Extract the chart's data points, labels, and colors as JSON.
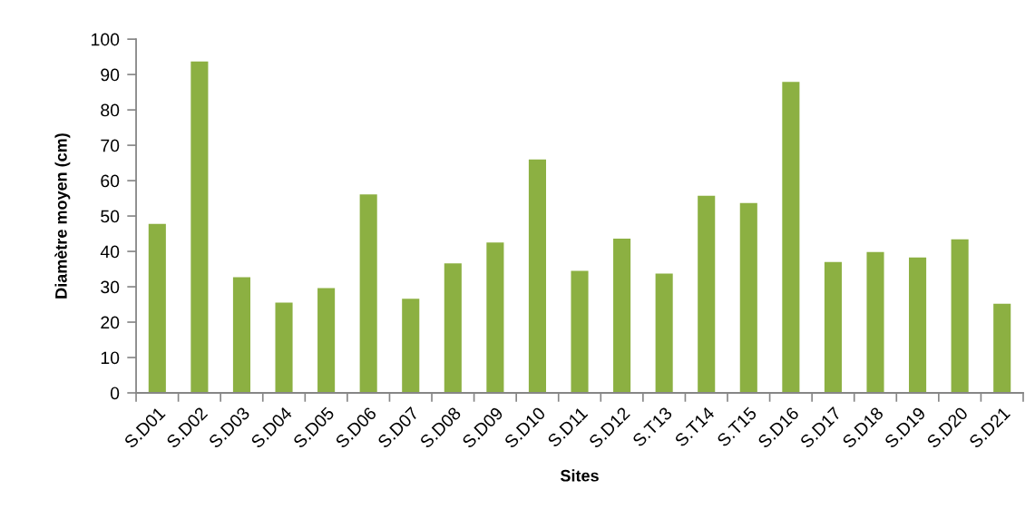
{
  "chart_data": {
    "type": "bar",
    "xlabel": "Sites",
    "ylabel": "Diamètre moyen (cm)",
    "categories": [
      "S.D01",
      "S.D02",
      "S.D03",
      "S.D04",
      "S.D05",
      "S.D06",
      "S.D07",
      "S.D08",
      "S.D09",
      "S.D10",
      "S.D11",
      "S.D12",
      "S.T13",
      "S.T14",
      "S.T15",
      "S.D16",
      "S.D17",
      "S.D18",
      "S.D19",
      "S.D20",
      "S.D21"
    ],
    "values": [
      47.8,
      93.7,
      32.7,
      25.5,
      29.6,
      56.1,
      26.6,
      36.6,
      42.5,
      66.0,
      34.5,
      43.6,
      33.7,
      55.7,
      53.7,
      87.9,
      37.0,
      39.8,
      38.3,
      43.4,
      25.2
    ],
    "color": "#8cb042",
    "ylim": [
      0,
      100
    ],
    "yticks": [
      0,
      10,
      20,
      30,
      40,
      50,
      60,
      70,
      80,
      90,
      100
    ],
    "grid": false
  }
}
